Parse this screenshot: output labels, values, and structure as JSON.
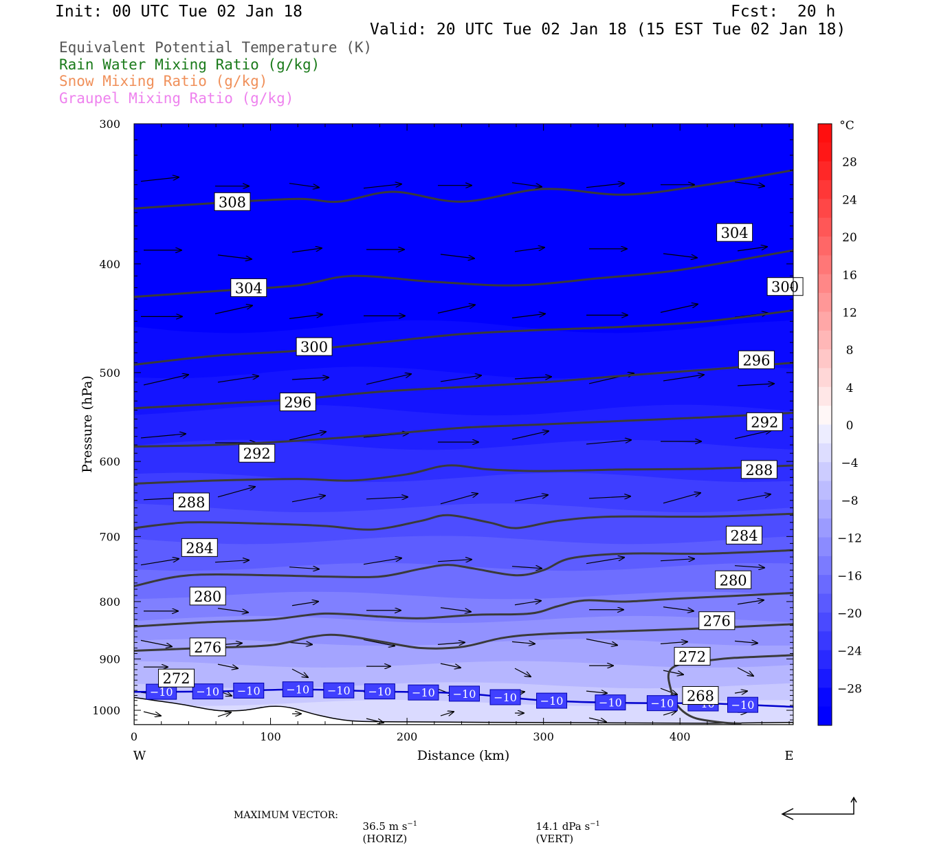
{
  "header": {
    "init": "Init: 00 UTC Tue 02 Jan 18",
    "fcst": "Fcst:  20 h",
    "valid": "Valid: 20 UTC Tue 02 Jan 18 (15 EST Tue 02 Jan 18)"
  },
  "legend": [
    {
      "label": "Equivalent Potential Temperature (K)",
      "color": "#555555"
    },
    {
      "label": "Rain Water Mixing Ratio (g/kg)",
      "color": "#1a7a1a"
    },
    {
      "label": "Snow Mixing Ratio (g/kg)",
      "color": "#f0905a"
    },
    {
      "label": "Graupel Mixing Ratio (g/kg)",
      "color": "#ee82ee"
    }
  ],
  "chart_data": {
    "type": "cross-section",
    "xlabel": "Distance (km)",
    "ylabel": "Pressure (hPa)",
    "xlim": [
      0,
      483
    ],
    "ylim": [
      300,
      1030
    ],
    "y_scale": "log-pressure",
    "x_ticks": [
      "0",
      "100",
      "200",
      "300",
      "400"
    ],
    "y_ticks": [
      "300",
      "400",
      "500",
      "600",
      "700",
      "800",
      "900",
      "1000"
    ],
    "x_end_labels": {
      "left": "W",
      "right": "E"
    },
    "theta_e_contours": [
      {
        "label": "308",
        "label_at": [
          72,
          352
        ],
        "points": [
          [
            0,
            357
          ],
          [
            60,
            353
          ],
          [
            120,
            350
          ],
          [
            150,
            352
          ],
          [
            190,
            345
          ],
          [
            240,
            352
          ],
          [
            300,
            343
          ],
          [
            360,
            347
          ],
          [
            420,
            340
          ],
          [
            483,
            330
          ]
        ]
      },
      {
        "label": "304",
        "label_at": [
          84,
          420
        ],
        "points": [
          [
            0,
            428
          ],
          [
            60,
            423
          ],
          [
            120,
            418
          ],
          [
            160,
            410
          ],
          [
            220,
            415
          ],
          [
            280,
            418
          ],
          [
            340,
            412
          ],
          [
            400,
            405
          ],
          [
            483,
            389
          ]
        ]
      },
      {
        "label": "304",
        "label_at": [
          440,
          375
        ],
        "points": []
      },
      {
        "label": "300",
        "label_at": [
          132,
          474
        ],
        "points": [
          [
            0,
            492
          ],
          [
            60,
            483
          ],
          [
            120,
            478
          ],
          [
            180,
            470
          ],
          [
            240,
            462
          ],
          [
            300,
            458
          ],
          [
            360,
            455
          ],
          [
            420,
            450
          ],
          [
            483,
            440
          ]
        ]
      },
      {
        "label": "300",
        "label_at": [
          477,
          419
        ],
        "points": []
      },
      {
        "label": "296",
        "label_at": [
          120,
          531
        ],
        "points": [
          [
            0,
            538
          ],
          [
            60,
            533
          ],
          [
            120,
            528
          ],
          [
            180,
            520
          ],
          [
            240,
            515
          ],
          [
            300,
            510
          ],
          [
            360,
            503
          ],
          [
            420,
            497
          ],
          [
            483,
            490
          ]
        ]
      },
      {
        "label": "296",
        "label_at": [
          456,
          487
        ],
        "points": []
      },
      {
        "label": "292",
        "label_at": [
          90,
          590
        ],
        "points": [
          [
            0,
            582
          ],
          [
            60,
            580
          ],
          [
            120,
            575
          ],
          [
            180,
            568
          ],
          [
            240,
            560
          ],
          [
            300,
            556
          ],
          [
            360,
            552
          ],
          [
            420,
            548
          ],
          [
            483,
            543
          ]
        ]
      },
      {
        "label": "292",
        "label_at": [
          462,
          553
        ],
        "points": []
      },
      {
        "label": "288",
        "label_at": [
          42,
          652
        ],
        "points": [
          [
            0,
            628
          ],
          [
            60,
            624
          ],
          [
            120,
            622
          ],
          [
            160,
            624
          ],
          [
            200,
            616
          ],
          [
            230,
            605
          ],
          [
            260,
            610
          ],
          [
            300,
            612
          ],
          [
            360,
            610
          ],
          [
            420,
            609
          ],
          [
            483,
            605
          ]
        ]
      },
      {
        "label": "288",
        "label_at": [
          458,
          610
        ],
        "points": []
      },
      {
        "label": "284",
        "label_at": [
          48,
          716
        ],
        "points": [
          [
            0,
            688
          ],
          [
            40,
            680
          ],
          [
            100,
            682
          ],
          [
            140,
            685
          ],
          [
            175,
            690
          ],
          [
            210,
            678
          ],
          [
            230,
            670
          ],
          [
            260,
            680
          ],
          [
            280,
            688
          ],
          [
            310,
            678
          ],
          [
            350,
            672
          ],
          [
            420,
            672
          ],
          [
            483,
            668
          ]
        ]
      },
      {
        "label": "284",
        "label_at": [
          447,
          698
        ],
        "points": []
      },
      {
        "label": "280",
        "label_at": [
          54,
          791
        ],
        "points": [
          [
            0,
            775
          ],
          [
            40,
            758
          ],
          [
            100,
            758
          ],
          [
            140,
            760
          ],
          [
            180,
            760
          ],
          [
            210,
            748
          ],
          [
            230,
            742
          ],
          [
            250,
            748
          ],
          [
            280,
            758
          ],
          [
            300,
            750
          ],
          [
            320,
            732
          ],
          [
            360,
            725
          ],
          [
            420,
            725
          ],
          [
            483,
            720
          ]
        ]
      },
      {
        "label": "280",
        "label_at": [
          439,
          765
        ],
        "points": []
      },
      {
        "label": "276",
        "label_at": [
          54,
          878
        ],
        "points": [
          [
            0,
            842
          ],
          [
            50,
            835
          ],
          [
            100,
            830
          ],
          [
            140,
            820
          ],
          [
            180,
            825
          ],
          [
            210,
            828
          ],
          [
            250,
            822
          ],
          [
            290,
            820
          ],
          [
            310,
            808
          ],
          [
            330,
            798
          ],
          [
            360,
            800
          ],
          [
            400,
            795
          ],
          [
            483,
            786
          ]
        ]
      },
      {
        "label": "276",
        "label_at": [
          427,
          832
        ],
        "points": []
      },
      {
        "label": "272",
        "label_at": [
          31,
          936
        ],
        "points": [
          [
            0,
            885
          ],
          [
            50,
            880
          ],
          [
            100,
            875
          ],
          [
            130,
            860
          ],
          [
            150,
            857
          ],
          [
            180,
            868
          ],
          [
            210,
            880
          ],
          [
            240,
            878
          ],
          [
            270,
            862
          ],
          [
            300,
            855
          ],
          [
            360,
            850
          ],
          [
            420,
            845
          ],
          [
            483,
            838
          ]
        ]
      },
      {
        "label": "272",
        "label_at": [
          409,
          895
        ],
        "points": []
      },
      {
        "label": "268",
        "label_at": [
          415,
          970
        ],
        "points": [
          [
            483,
            893
          ],
          [
            440,
            898
          ],
          [
            420,
            903
          ],
          [
            400,
            910
          ],
          [
            392,
            925
          ],
          [
            393,
            955
          ],
          [
            398,
            990
          ],
          [
            410,
            1015
          ],
          [
            430,
            1025
          ],
          [
            445,
            1028
          ]
        ]
      }
    ],
    "isotherm_minus10": {
      "label": "−10",
      "label_positions": [
        20,
        54,
        84,
        120,
        150,
        180,
        212,
        242,
        272,
        306,
        349,
        387,
        417,
        446
      ],
      "points": [
        [
          0,
          963
        ],
        [
          60,
          962
        ],
        [
          120,
          958
        ],
        [
          180,
          962
        ],
        [
          240,
          966
        ],
        [
          300,
          980
        ],
        [
          360,
          985
        ],
        [
          420,
          986
        ],
        [
          483,
          993
        ]
      ]
    },
    "colorbar": {
      "unit": "°C",
      "labels": [
        "28",
        "24",
        "20",
        "16",
        "12",
        "8",
        "4",
        "0",
        "−4",
        "−8",
        "−12",
        "−16",
        "−20",
        "−24",
        "−28"
      ],
      "range": [
        -32,
        32
      ]
    },
    "vectors_note": "wind vectors in plane of section"
  },
  "footer": {
    "max_label": "MAXIMUM VECTOR:",
    "horiz_value": "36.5 m s",
    "horiz_unit": "(HORIZ)",
    "vert_value": "14.1 dPa s",
    "vert_unit": "(VERT)",
    "exp": "−1"
  }
}
